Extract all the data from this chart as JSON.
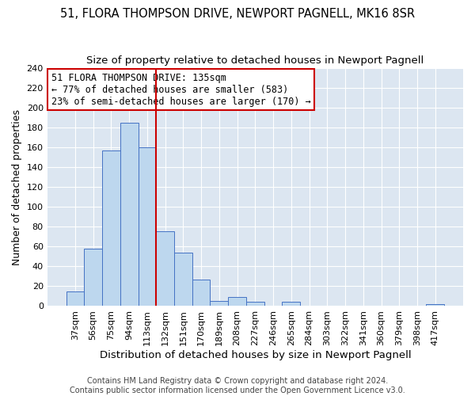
{
  "title": "51, FLORA THOMPSON DRIVE, NEWPORT PAGNELL, MK16 8SR",
  "subtitle": "Size of property relative to detached houses in Newport Pagnell",
  "xlabel": "Distribution of detached houses by size in Newport Pagnell",
  "ylabel": "Number of detached properties",
  "bar_labels": [
    "37sqm",
    "56sqm",
    "75sqm",
    "94sqm",
    "113sqm",
    "132sqm",
    "151sqm",
    "170sqm",
    "189sqm",
    "208sqm",
    "227sqm",
    "246sqm",
    "265sqm",
    "284sqm",
    "303sqm",
    "322sqm",
    "341sqm",
    "360sqm",
    "379sqm",
    "398sqm",
    "417sqm"
  ],
  "bar_values": [
    15,
    58,
    157,
    185,
    160,
    75,
    54,
    27,
    5,
    9,
    4,
    0,
    4,
    0,
    0,
    0,
    0,
    0,
    0,
    0,
    2
  ],
  "bar_color": "#bdd7ee",
  "bar_edge_color": "#4472c4",
  "vline_x_index": 5,
  "vline_color": "#cc0000",
  "ylim": [
    0,
    240
  ],
  "yticks": [
    0,
    20,
    40,
    60,
    80,
    100,
    120,
    140,
    160,
    180,
    200,
    220,
    240
  ],
  "annotation_title": "51 FLORA THOMPSON DRIVE: 135sqm",
  "annotation_line1": "← 77% of detached houses are smaller (583)",
  "annotation_line2": "23% of semi-detached houses are larger (170) →",
  "annotation_box_color": "#ffffff",
  "annotation_box_edge_color": "#cc0000",
  "footer1": "Contains HM Land Registry data © Crown copyright and database right 2024.",
  "footer2": "Contains public sector information licensed under the Open Government Licence v3.0.",
  "title_fontsize": 10.5,
  "subtitle_fontsize": 9.5,
  "xlabel_fontsize": 9.5,
  "ylabel_fontsize": 9,
  "tick_fontsize": 8,
  "annotation_fontsize": 8.5,
  "footer_fontsize": 7,
  "bg_color": "#dce6f1",
  "grid_color": "#ffffff"
}
